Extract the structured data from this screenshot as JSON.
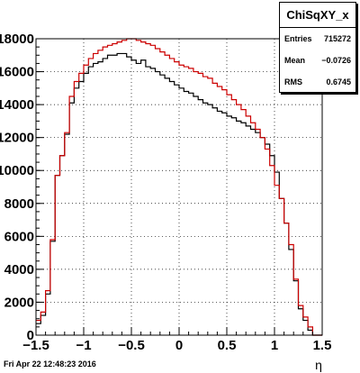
{
  "chart_data": {
    "type": "line",
    "title": "",
    "xlabel": "η",
    "ylabel": "",
    "xlim": [
      -1.5,
      1.5
    ],
    "ylim": [
      0,
      18000
    ],
    "grid": true,
    "xticks": [
      -1.5,
      -1,
      -0.5,
      0,
      0.5,
      1,
      1.5
    ],
    "xtick_labels": [
      "−1.5",
      "−1",
      "−0.5",
      "0",
      "0.5",
      "1",
      "1.5"
    ],
    "yticks": [
      0,
      2000,
      4000,
      6000,
      8000,
      10000,
      12000,
      14000,
      16000,
      18000
    ],
    "ytick_labels": [
      "0",
      "2000",
      "4000",
      "6000",
      "8000",
      "10000",
      "12000",
      "14000",
      "16000",
      "18000"
    ],
    "bin_edges": [
      -1.5,
      -1.45,
      -1.4,
      -1.35,
      -1.3,
      -1.25,
      -1.2,
      -1.15,
      -1.1,
      -1.05,
      -1.0,
      -0.95,
      -0.9,
      -0.85,
      -0.8,
      -0.75,
      -0.7,
      -0.65,
      -0.6,
      -0.55,
      -0.5,
      -0.45,
      -0.4,
      -0.35,
      -0.3,
      -0.25,
      -0.2,
      -0.15,
      -0.1,
      -0.05,
      0.0,
      0.05,
      0.1,
      0.15,
      0.2,
      0.25,
      0.3,
      0.35,
      0.4,
      0.45,
      0.5,
      0.55,
      0.6,
      0.65,
      0.7,
      0.75,
      0.8,
      0.85,
      0.9,
      0.95,
      1.0,
      1.05,
      1.1,
      1.15,
      1.2,
      1.25,
      1.3,
      1.35,
      1.4,
      1.45,
      1.5
    ],
    "series": [
      {
        "color": "#000000",
        "values": [
          700,
          1200,
          2500,
          5700,
          9700,
          10900,
          12200,
          14100,
          15000,
          15400,
          15900,
          16300,
          16500,
          16600,
          16800,
          17000,
          17000,
          17100,
          17100,
          16900,
          16700,
          16500,
          16700,
          16300,
          16200,
          16000,
          15800,
          15600,
          15400,
          15200,
          15000,
          14800,
          14700,
          14500,
          14300,
          14100,
          14000,
          13800,
          13600,
          13500,
          13300,
          13200,
          13000,
          12900,
          12700,
          12500,
          12300,
          12000,
          11600,
          10900,
          9900,
          8300,
          6800,
          5200,
          3300,
          1600,
          900,
          300,
          0,
          0
        ]
      },
      {
        "color": "#cc0000",
        "values": [
          900,
          1400,
          2700,
          5800,
          9700,
          10900,
          12300,
          14500,
          15400,
          15900,
          16400,
          16800,
          17100,
          17300,
          17500,
          17600,
          17700,
          17800,
          17900,
          18000,
          18000,
          17900,
          17800,
          17700,
          17600,
          17400,
          17200,
          17000,
          16800,
          16600,
          16400,
          16300,
          16200,
          16000,
          15900,
          15700,
          15600,
          15300,
          15100,
          14900,
          14600,
          14300,
          14000,
          13700,
          13300,
          12900,
          12500,
          12000,
          11300,
          10300,
          9100,
          8300,
          6800,
          5500,
          3400,
          1800,
          1100,
          500,
          0,
          0
        ]
      }
    ]
  },
  "stats_box": {
    "title": "ChiSqXY_x",
    "rows": [
      {
        "label": "Entries",
        "value": "715272"
      },
      {
        "label": "Mean",
        "value": "−0.0726"
      },
      {
        "label": "RMS",
        "value": "0.6745"
      }
    ]
  },
  "footer": {
    "timestamp": "Fri Apr 22 12:48:23 2016"
  }
}
